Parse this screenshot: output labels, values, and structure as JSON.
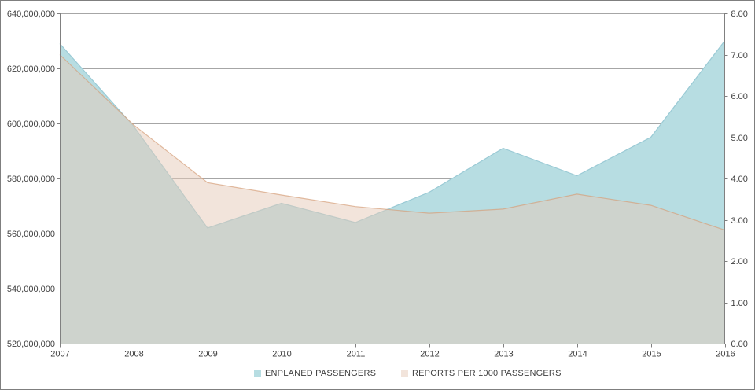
{
  "chart_data": {
    "type": "area",
    "title": "",
    "x_labels": [
      "2007",
      "2008",
      "2009",
      "2010",
      "2011",
      "2012",
      "2013",
      "2014",
      "2015",
      "2016"
    ],
    "series": [
      {
        "name": "ENPLANED PASSENGERS",
        "axis": "left",
        "values": [
          629000000,
          599000000,
          562000000,
          571000000,
          564000000,
          575000000,
          591000000,
          581000000,
          595000000,
          630000000
        ],
        "fill": "#b7dde2",
        "edge": "#9acad5",
        "swatch": "#b7dde2"
      },
      {
        "name": "REPORTS PER 1000 PASSENGERS",
        "axis": "right",
        "values": [
          7.0,
          5.3,
          3.9,
          3.6,
          3.32,
          3.16,
          3.26,
          3.62,
          3.35,
          2.75
        ],
        "fill": "rgba(229,201,183,0.5)",
        "edge": "rgba(214,160,122,0.7)",
        "swatch": "#f2e4db"
      }
    ],
    "left_axis": {
      "min": 520000000,
      "max": 640000000,
      "step": 20000000,
      "tick_labels": [
        "640,000,000",
        "620,000,000",
        "600,000,000",
        "580,000,000",
        "560,000,000",
        "540,000,000",
        "520,000,000"
      ]
    },
    "right_axis": {
      "min": 0,
      "max": 8,
      "step": 1,
      "tick_labels": [
        "8.00",
        "7.00",
        "6.00",
        "5.00",
        "4.00",
        "3.00",
        "2.00",
        "1.00",
        "0.00"
      ]
    },
    "grid": true,
    "legend_position": "bottom"
  },
  "colors": {
    "axis": "#808080",
    "gridline": "#a6a6a6",
    "text": "#404040",
    "border": "#7f7f7f",
    "background": "#ffffff"
  }
}
